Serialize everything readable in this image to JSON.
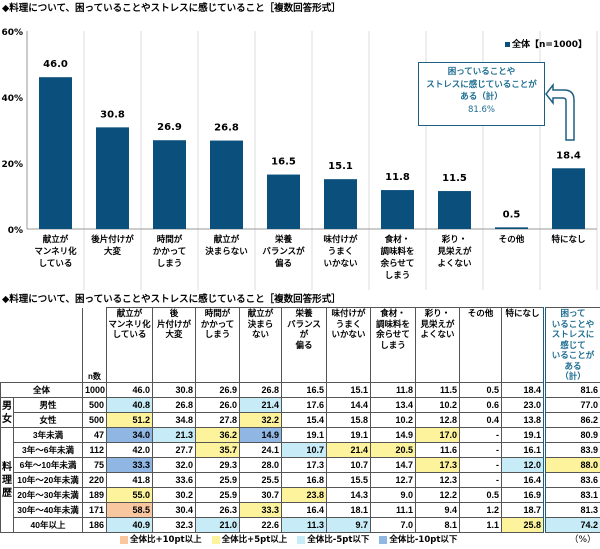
{
  "chart_data": {
    "type": "bar",
    "title": "◆料理について、困っていることやストレスに感じていること［複数回答形式］",
    "categories": [
      "献立が\nマンネリ化\nしている",
      "後片付けが\n大変",
      "時間が\nかかって\nしまう",
      "献立が\n決まらない",
      "栄養\nバランスが\n偏る",
      "味付けが\nうまく\nいかない",
      "食材・\n調味料を\n余らせて\nしまう",
      "彩り・\n見栄えが\nよくない",
      "その他",
      "特になし"
    ],
    "series": [
      {
        "name": "全体【n=1000】",
        "values": [
          46.0,
          30.8,
          26.9,
          26.8,
          16.5,
          15.1,
          11.8,
          11.5,
          0.5,
          18.4
        ]
      }
    ],
    "value_labels": [
      "46.0",
      "30.8",
      "26.9",
      "26.8",
      "16.5",
      "15.1",
      "11.8",
      "11.5",
      "0.5",
      "18.4"
    ],
    "ylim": [
      0,
      60
    ],
    "yticks": [
      "0%",
      "20%",
      "40%",
      "60%"
    ],
    "grid": "vertical",
    "legend": "top-right",
    "bar_color": "#0b4f7c",
    "callout": {
      "line1": "困っていることや",
      "line2": "ストレスに感じていることが",
      "line3": "ある（計）",
      "value": "81.6%"
    }
  },
  "table": {
    "title": "◆料理について、困っていることやストレスに感じていること［複数回答形式］",
    "n_header": "n数",
    "headers": [
      "献立が\nマンネリ化\nしている",
      "後\n片付けが\n大変",
      "時間が\nかかって\nしまう",
      "献立が\n決まら\nない",
      "栄養\nバランス\nが\n偏る",
      "味付けが\nうまく\nいかない",
      "食材・\n調味料を\n余らせて\nしまう",
      "彩り・\n見栄えが\nよくない",
      "その他",
      "特になし",
      "困って\nいることや\nストレスに\n感じて\nいることが\nある\n（計）"
    ],
    "groups": [
      {
        "label": "",
        "rows": [
          0
        ]
      },
      {
        "label": "男\n女",
        "rows": [
          1,
          2
        ]
      },
      {
        "label": "料\n理\n歴",
        "rows": [
          3,
          4,
          5,
          6,
          7,
          8,
          9
        ]
      }
    ],
    "rows": [
      {
        "label": "全体",
        "n": "1000",
        "values": [
          "46.0",
          "30.8",
          "26.9",
          "26.8",
          "16.5",
          "15.1",
          "11.8",
          "11.5",
          "0.5",
          "18.4",
          "81.6"
        ],
        "hl": [
          "",
          "",
          "",
          "",
          "",
          "",
          "",
          "",
          "",
          "",
          ""
        ]
      },
      {
        "label": "男性",
        "n": "500",
        "values": [
          "40.8",
          "26.8",
          "26.0",
          "21.4",
          "17.6",
          "14.4",
          "13.4",
          "10.2",
          "0.6",
          "23.0",
          "77.0"
        ],
        "hl": [
          "c",
          "",
          "",
          "c",
          "",
          "",
          "",
          "",
          "",
          "",
          ""
        ]
      },
      {
        "label": "女性",
        "n": "500",
        "values": [
          "51.2",
          "34.8",
          "27.8",
          "32.2",
          "15.4",
          "15.8",
          "10.2",
          "12.8",
          "0.4",
          "13.8",
          "86.2"
        ],
        "hl": [
          "y",
          "",
          "",
          "y",
          "",
          "",
          "",
          "",
          "",
          "",
          ""
        ]
      },
      {
        "label": "3年未満",
        "n": "47",
        "values": [
          "34.0",
          "21.3",
          "36.2",
          "14.9",
          "19.1",
          "19.1",
          "14.9",
          "17.0",
          "-",
          "19.1",
          "80.9"
        ],
        "hl": [
          "b",
          "c",
          "y",
          "b",
          "",
          "",
          "",
          "y",
          "",
          "",
          ""
        ]
      },
      {
        "label": "3年～6年未満",
        "n": "112",
        "values": [
          "42.0",
          "27.7",
          "35.7",
          "24.1",
          "10.7",
          "21.4",
          "20.5",
          "11.6",
          "-",
          "16.1",
          "83.9"
        ],
        "hl": [
          "",
          "",
          "y",
          "",
          "c",
          "y",
          "y",
          "",
          "",
          "",
          ""
        ]
      },
      {
        "label": "6年～10年未満",
        "n": "75",
        "values": [
          "33.3",
          "32.0",
          "29.3",
          "28.0",
          "17.3",
          "10.7",
          "14.7",
          "17.3",
          "-",
          "12.0",
          "88.0"
        ],
        "hl": [
          "b",
          "",
          "",
          "",
          "",
          "",
          "",
          "y",
          "",
          "c",
          "y"
        ]
      },
      {
        "label": "10年～20年未満",
        "n": "220",
        "values": [
          "41.8",
          "33.6",
          "25.9",
          "25.5",
          "16.8",
          "15.5",
          "12.7",
          "12.3",
          "-",
          "16.4",
          "83.6"
        ],
        "hl": [
          "",
          "",
          "",
          "",
          "",
          "",
          "",
          "",
          "",
          "",
          ""
        ]
      },
      {
        "label": "20年～30年未満",
        "n": "189",
        "values": [
          "55.0",
          "30.2",
          "25.9",
          "30.7",
          "23.8",
          "14.3",
          "9.0",
          "12.2",
          "0.5",
          "16.9",
          "83.1"
        ],
        "hl": [
          "y",
          "",
          "",
          "",
          "y",
          "",
          "",
          "",
          "",
          "",
          ""
        ]
      },
      {
        "label": "30年～40年未満",
        "n": "171",
        "values": [
          "58.5",
          "30.4",
          "26.3",
          "33.3",
          "16.4",
          "18.1",
          "11.1",
          "9.4",
          "1.2",
          "18.7",
          "81.3"
        ],
        "hl": [
          "o",
          "",
          "",
          "y",
          "",
          "",
          "",
          "",
          "",
          "",
          ""
        ]
      },
      {
        "label": "40年以上",
        "n": "186",
        "values": [
          "40.9",
          "32.3",
          "21.0",
          "22.6",
          "11.3",
          "9.7",
          "7.0",
          "8.1",
          "1.1",
          "25.8",
          "74.2"
        ],
        "hl": [
          "c",
          "",
          "c",
          "",
          "c",
          "c",
          "",
          "",
          "",
          "y",
          "c"
        ]
      }
    ],
    "legend": [
      {
        "label": "全体比+10pt以上",
        "color": "#f8c7a0"
      },
      {
        "label": "全体比+5pt以上",
        "color": "#fdf39c"
      },
      {
        "label": "全体比-5pt以下",
        "color": "#c7ecf7"
      },
      {
        "label": "全体比-10pt以下",
        "color": "#90b6e4"
      }
    ],
    "unit": "（%）"
  }
}
